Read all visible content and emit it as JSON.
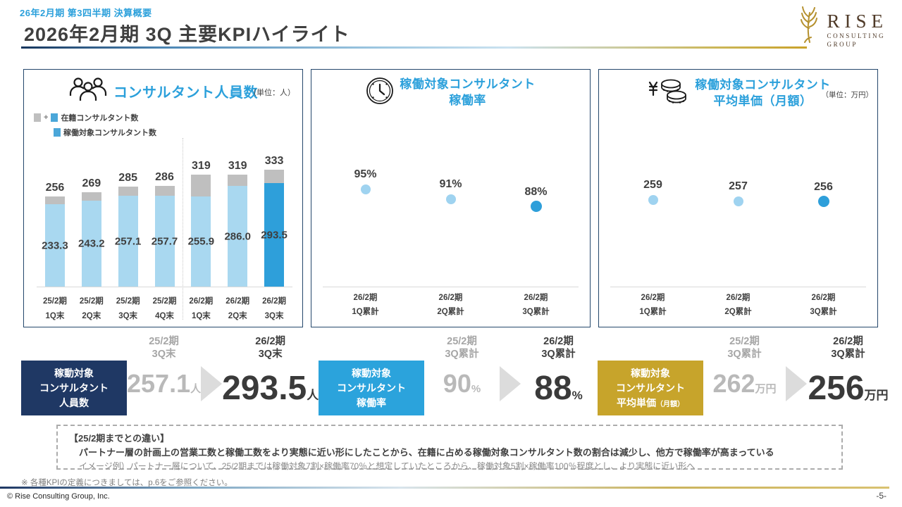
{
  "header": {
    "kicker": "26年2月期 第3四半期 決算概要",
    "title": "2026年2月期 3Q 主要KPIハイライト",
    "logo": {
      "name": "RISE",
      "sub1": "CONSULTING",
      "sub2": "GROUP"
    }
  },
  "panels": {
    "headcount": {
      "title": "コンサルタント人員数",
      "unit": "（単位：人）",
      "legend": {
        "plus": "+",
        "row1_label": "在籍コンサルタント数",
        "row2_label": "稼働対象コンサルタント数"
      }
    },
    "rate": {
      "title_line1": "稼働対象コンサルタント",
      "title_line2": "稼働率"
    },
    "price": {
      "title_line1": "稼働対象コンサルタント",
      "title_line2": "平均単価（月額）",
      "unit": "（単位：万円）"
    }
  },
  "chart_data": [
    {
      "id": "headcount",
      "type": "bar",
      "title": "コンサルタント人員数",
      "ylabel": "人",
      "categories": [
        [
          "25/2期",
          "1Q末"
        ],
        [
          "25/2期",
          "2Q末"
        ],
        [
          "25/2期",
          "3Q末"
        ],
        [
          "25/2期",
          "4Q末"
        ],
        [
          "26/2期",
          "1Q末"
        ],
        [
          "26/2期",
          "2Q末"
        ],
        [
          "26/2期",
          "3Q末"
        ]
      ],
      "series": [
        {
          "name": "在籍コンサルタント数",
          "values": [
            256,
            269,
            285,
            286,
            319,
            319,
            333
          ],
          "labels": [
            "256",
            "269",
            "285",
            "286",
            "319",
            "319",
            "333"
          ]
        },
        {
          "name": "稼働対象コンサルタント数",
          "values": [
            233.3,
            243.2,
            257.1,
            257.7,
            255.9,
            286.0,
            293.5
          ],
          "labels": [
            "233.3",
            "243.2",
            "257.1",
            "257.7",
            "255.9",
            "286.0",
            "293.5"
          ]
        }
      ],
      "ylim": [
        0,
        340
      ],
      "stacked_remainder": true,
      "divider_after_index": 3,
      "highlight_index": 6,
      "grid": false,
      "legend_position": "top-left"
    },
    {
      "id": "rate",
      "type": "scatter",
      "title": "稼働対象コンサルタント稼働率",
      "ylabel": "%",
      "categories": [
        [
          "26/2期",
          "1Q累計"
        ],
        [
          "26/2期",
          "2Q累計"
        ],
        [
          "26/2期",
          "3Q累計"
        ]
      ],
      "values": [
        95,
        91,
        88
      ],
      "labels": [
        "95%",
        "91%",
        "88%"
      ],
      "ylim": [
        59,
        107
      ],
      "highlight_index": 2,
      "grid": false
    },
    {
      "id": "price",
      "type": "scatter",
      "title": "稼働対象コンサルタント平均単価（月額）",
      "ylabel": "万円",
      "categories": [
        [
          "26/2期",
          "1Q累計"
        ],
        [
          "26/2期",
          "2Q累計"
        ],
        [
          "26/2期",
          "3Q累計"
        ]
      ],
      "values": [
        259,
        257,
        256
      ],
      "labels": [
        "259",
        "257",
        "256"
      ],
      "ylim": [
        140,
        320
      ],
      "highlight_index": 2,
      "grid": false
    }
  ],
  "kpi_summary": [
    {
      "box_lines": [
        "稼動対象",
        "コンサルタント",
        "人員数"
      ],
      "box_suffix": "",
      "box_color": "#1F3864",
      "prev": {
        "period": [
          "25/2期",
          "3Q末"
        ],
        "value": "257.1",
        "unit": "人"
      },
      "curr": {
        "period": [
          "26/2期",
          "3Q末"
        ],
        "value": "293.5",
        "unit": "人"
      }
    },
    {
      "box_lines": [
        "稼動対象",
        "コンサルタント",
        "稼働率"
      ],
      "box_suffix": "",
      "box_color": "#2BA3DC",
      "prev": {
        "period": [
          "25/2期",
          "3Q累計"
        ],
        "value": "90",
        "unit": "%"
      },
      "curr": {
        "period": [
          "26/2期",
          "3Q累計"
        ],
        "value": "88",
        "unit": "%"
      }
    },
    {
      "box_lines": [
        "稼動対象",
        "コンサルタント",
        "平均単価"
      ],
      "box_suffix": "（月額）",
      "box_color": "#C7A42B",
      "prev": {
        "period": [
          "25/2期",
          "3Q累計"
        ],
        "value": "262",
        "unit": "万円"
      },
      "curr": {
        "period": [
          "26/2期",
          "3Q累計"
        ],
        "value": "256",
        "unit": "万円"
      }
    }
  ],
  "note_box": {
    "heading": "【25/2期までとの違い】",
    "body": "パートナー層の計画上の営業工数と稼働工数をより実態に近い形にしたことから、在籍に占める稼働対象コンサルタント数の割合は減少し、他方で稼働率が高まっている",
    "example": "イメージ例）パートナー層について、25/2期までは稼働対象7割×稼働率70％と想定していたところから、稼働対象5割×稼働率100％程度とし、より実態に近い形へ"
  },
  "footnote": "※ 各種KPIの定義につきましては、p.6をご参照ください。",
  "footer": {
    "copyright": "© Rise Consulting Group, Inc.",
    "page": "-5-"
  },
  "colors": {
    "accent_blue": "#2BA0DB",
    "bar_light_blue": "#A9D8F0",
    "bar_highlight_blue": "#2E9FDA",
    "bar_gray": "#BFBFBF",
    "navy_box": "#1F3864",
    "blue_box": "#2BA3DC",
    "gold_box": "#C7A42B",
    "prev_gray": "#B9B9B9",
    "text_dark": "#3F3F3F",
    "logo_gold": "#B5912F",
    "logo_brown": "#4F3A28"
  }
}
